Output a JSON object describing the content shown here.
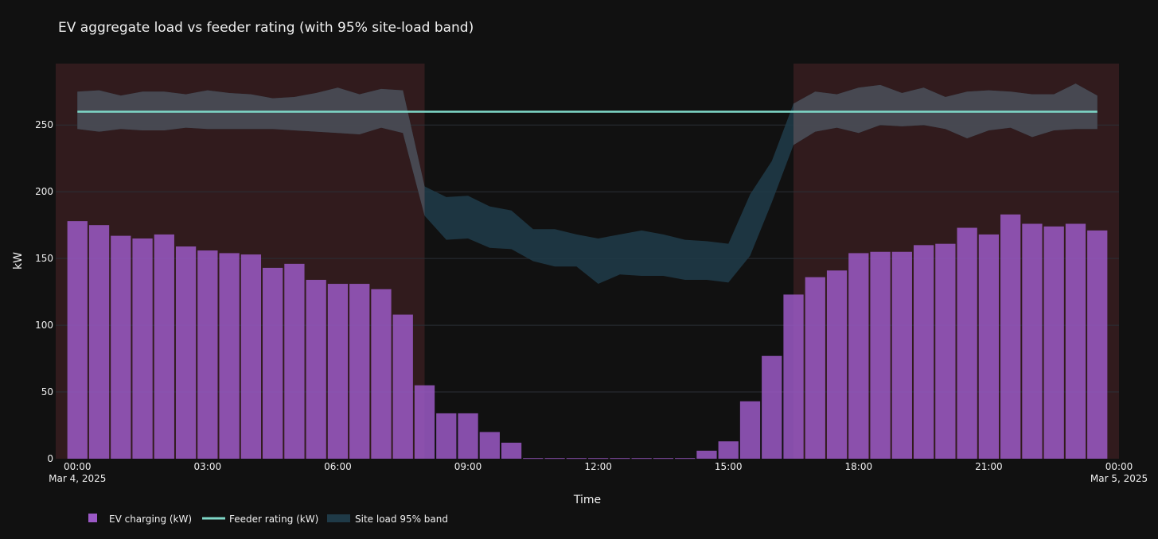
{
  "chart_data": {
    "type": "bar",
    "title": "EV aggregate load vs feeder rating (with 95% site-load band)",
    "xlabel": "Time",
    "ylabel": "kW",
    "ylim": [
      0,
      296
    ],
    "x_range_hours": [
      -0.5,
      24
    ],
    "x_ticks": [
      {
        "h": 0,
        "label": "00:00",
        "sub": "Mar 4, 2025"
      },
      {
        "h": 3,
        "label": "03:00",
        "sub": ""
      },
      {
        "h": 6,
        "label": "06:00",
        "sub": ""
      },
      {
        "h": 9,
        "label": "09:00",
        "sub": ""
      },
      {
        "h": 12,
        "label": "12:00",
        "sub": ""
      },
      {
        "h": 15,
        "label": "15:00",
        "sub": ""
      },
      {
        "h": 18,
        "label": "18:00",
        "sub": ""
      },
      {
        "h": 21,
        "label": "21:00",
        "sub": ""
      },
      {
        "h": 24,
        "label": "00:00",
        "sub": "Mar 5, 2025"
      }
    ],
    "y_ticks": [
      0,
      50,
      100,
      150,
      200,
      250
    ],
    "shaded_periods": [
      {
        "start": -0.5,
        "end": 8.0
      },
      {
        "start": 16.5,
        "end": 24.0
      }
    ],
    "grid": true,
    "legend_position": "bottom-left",
    "legend": [
      {
        "name": "EV charging (kW)",
        "kind": "bar"
      },
      {
        "name": "Feeder rating (kW)",
        "kind": "line"
      },
      {
        "name": "Site load 95% band",
        "kind": "band"
      }
    ],
    "ev_charging": {
      "name": "EV charging (kW)",
      "times_h": [
        0,
        0.5,
        1,
        1.5,
        2,
        2.5,
        3,
        3.5,
        4,
        4.5,
        5,
        5.5,
        6,
        6.5,
        7,
        7.5,
        8,
        8.5,
        9,
        9.5,
        10,
        10.5,
        11,
        11.5,
        12,
        12.5,
        13,
        13.5,
        14,
        14.5,
        15,
        15.5,
        16,
        16.5,
        17,
        17.5,
        18,
        18.5,
        19,
        19.5,
        20,
        20.5,
        21,
        21.5,
        22,
        22.5,
        23,
        23.5
      ],
      "values": [
        178,
        175,
        167,
        165,
        168,
        159,
        156,
        154,
        153,
        143,
        146,
        134,
        131,
        131,
        127,
        108,
        55,
        34,
        34,
        20,
        12,
        0.5,
        0.5,
        0.5,
        0.5,
        0.5,
        0.5,
        0.5,
        0.5,
        6,
        13,
        43,
        77,
        123,
        136,
        141,
        154,
        155,
        155,
        160,
        161,
        173,
        168,
        183,
        176,
        174,
        176,
        171
      ]
    },
    "feeder_rating": {
      "name": "Feeder rating (kW)",
      "value": 260,
      "start_h": 0,
      "end_h": 23.5
    },
    "site_load_band": {
      "name": "Site load 95% band",
      "times_h": [
        0,
        0.5,
        1,
        1.5,
        2,
        2.5,
        3,
        3.5,
        4,
        4.5,
        5,
        5.5,
        6,
        6.5,
        7,
        7.5,
        8,
        8.5,
        9,
        9.5,
        10,
        10.5,
        11,
        11.5,
        12,
        12.5,
        13,
        13.5,
        14,
        14.5,
        15,
        15.5,
        16,
        16.5,
        17,
        17.5,
        18,
        18.5,
        19,
        19.5,
        20,
        20.5,
        21,
        21.5,
        22,
        22.5,
        23,
        23.5
      ],
      "upper": [
        275,
        276,
        272,
        275,
        275,
        273,
        276,
        274,
        273,
        270,
        271,
        274,
        278,
        273,
        277,
        276,
        204,
        196,
        197,
        189,
        186,
        172,
        172,
        168,
        165,
        168,
        171,
        168,
        164,
        163,
        161,
        198,
        223,
        266,
        275,
        273,
        278,
        280,
        274,
        278,
        271,
        275,
        276,
        275,
        273,
        273,
        281,
        272
      ],
      "lower": [
        247,
        245,
        247,
        246,
        246,
        248,
        247,
        247,
        247,
        247,
        246,
        245,
        244,
        243,
        248,
        244,
        182,
        164,
        165,
        158,
        157,
        148,
        144,
        144,
        131,
        138,
        137,
        137,
        134,
        134,
        132,
        152,
        192,
        235,
        245,
        248,
        244,
        250,
        249,
        250,
        247,
        240,
        246,
        248,
        241,
        246,
        247,
        247
      ]
    },
    "colors": {
      "background": "#111111",
      "shade": "#311b1d",
      "bar": "#9b59c6",
      "bar_opacity": 0.85,
      "feeder_line": "#7fd8c8",
      "band": "#1f3a47",
      "band_over_shade": "#4a4a52",
      "grid": "#2b2f36"
    }
  }
}
